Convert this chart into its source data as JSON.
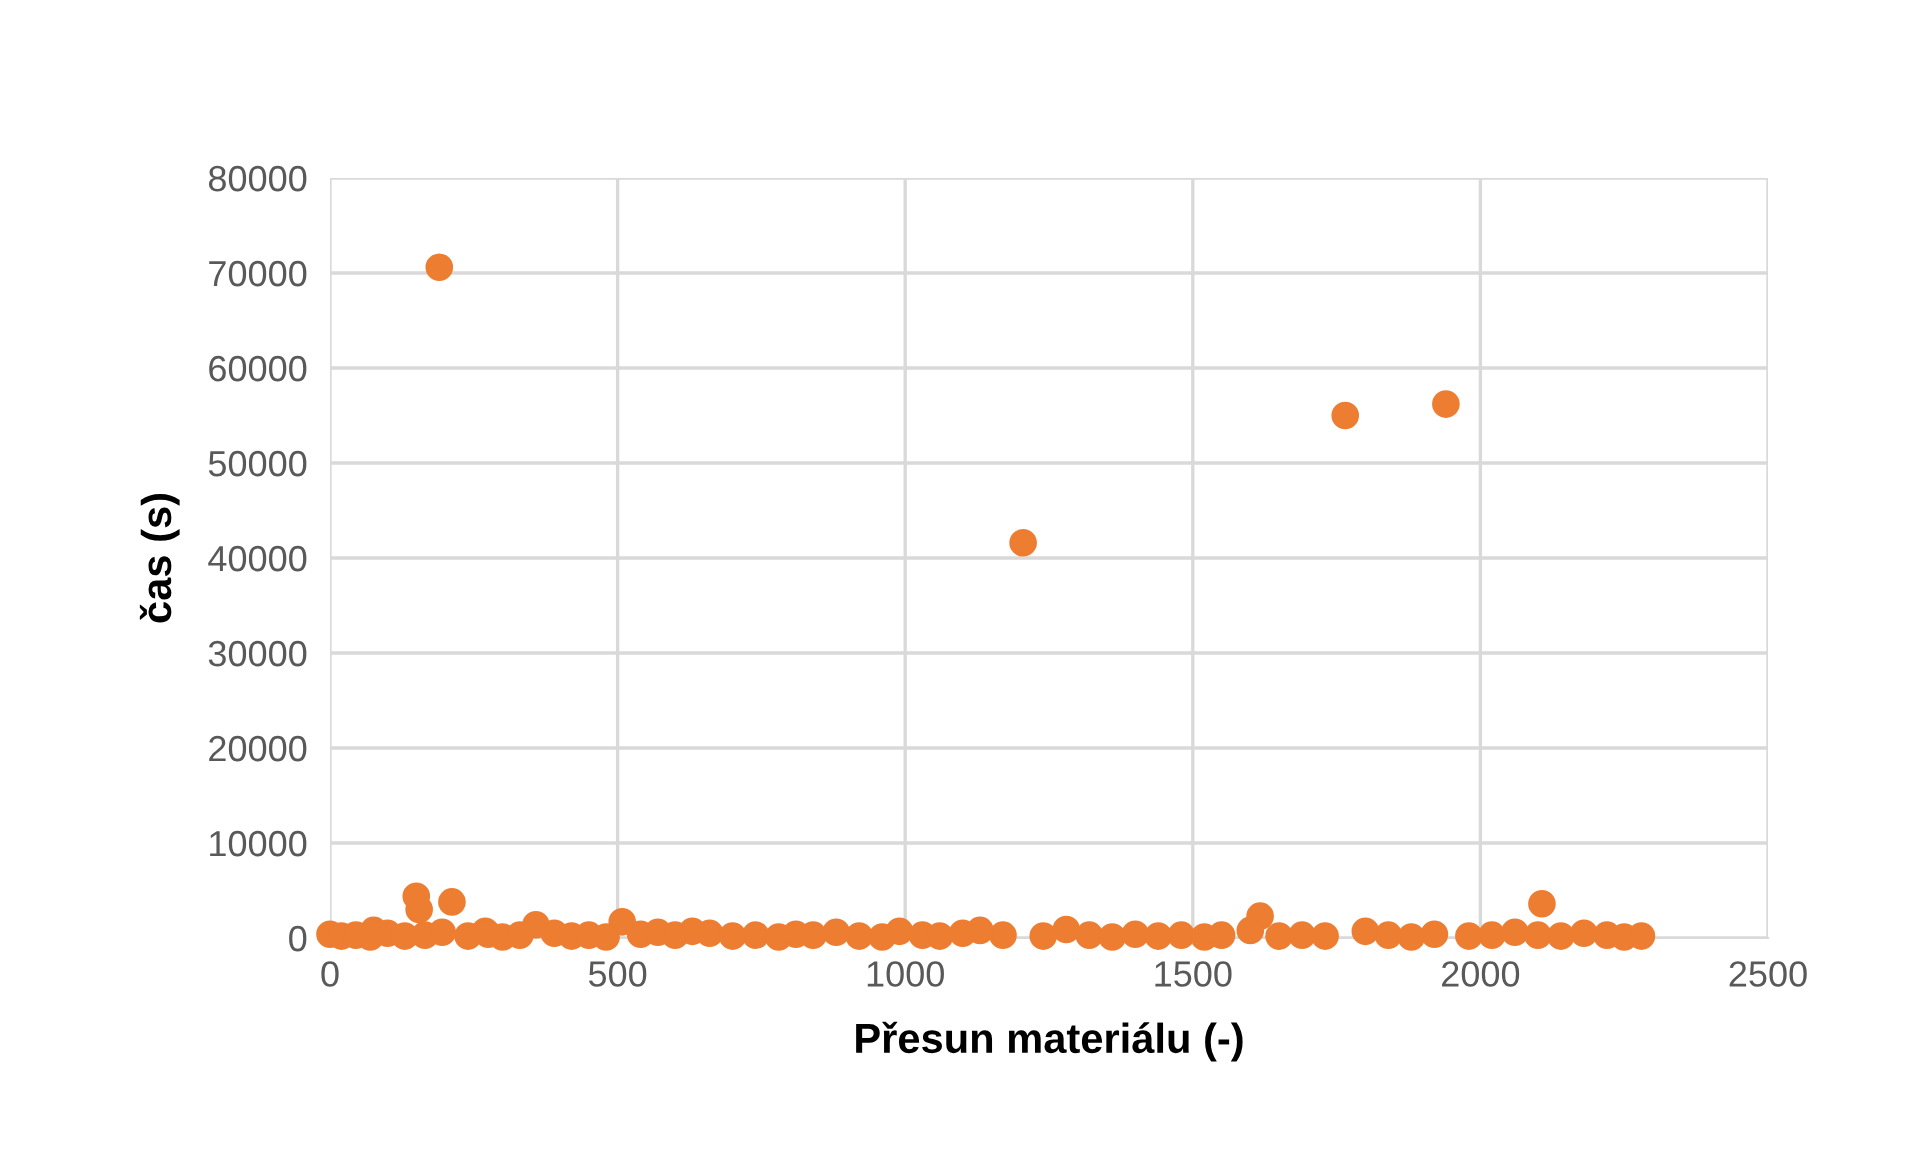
{
  "chart_data": {
    "type": "scatter",
    "xlabel": "Přesun materiálu (-)",
    "ylabel": "čas (s)",
    "xlim": [
      0,
      2500
    ],
    "ylim": [
      0,
      80000
    ],
    "xticks": [
      0,
      500,
      1000,
      1500,
      2000,
      2500
    ],
    "yticks": [
      0,
      10000,
      20000,
      30000,
      40000,
      50000,
      60000,
      70000,
      80000
    ],
    "grid": true,
    "marker": "circle",
    "legend": false,
    "series": [
      {
        "color": "#ed7d31",
        "x": [
          190,
          1205,
          1765,
          1940,
          150,
          155,
          212,
          76,
          358,
          508,
          1617,
          2107,
          270,
          0,
          20,
          45,
          70,
          100,
          130,
          165,
          195,
          240,
          275,
          300,
          330,
          390,
          420,
          450,
          480,
          540,
          570,
          600,
          630,
          660,
          700,
          740,
          780,
          810,
          840,
          880,
          920,
          960,
          990,
          1030,
          1060,
          1100,
          1130,
          1170,
          1240,
          1280,
          1320,
          1360,
          1400,
          1440,
          1480,
          1520,
          1550,
          1600,
          1650,
          1690,
          1730,
          1800,
          1840,
          1880,
          1920,
          1980,
          2020,
          2060,
          2100,
          2140,
          2180,
          2220,
          2250,
          2280
        ],
        "values": [
          70600,
          41600,
          55000,
          56200,
          4400,
          3000,
          3800,
          800,
          1400,
          1700,
          2300,
          3600,
          700,
          400,
          200,
          300,
          100,
          500,
          200,
          300,
          600,
          200,
          400,
          100,
          300,
          500,
          200,
          300,
          100,
          400,
          600,
          300,
          700,
          500,
          200,
          300,
          100,
          400,
          300,
          600,
          200,
          100,
          700,
          300,
          200,
          500,
          800,
          300,
          200,
          900,
          300,
          100,
          400,
          200,
          300,
          100,
          300,
          800,
          200,
          300,
          200,
          700,
          300,
          100,
          400,
          200,
          300,
          600,
          300,
          200,
          500,
          300,
          100,
          200
        ]
      }
    ]
  }
}
